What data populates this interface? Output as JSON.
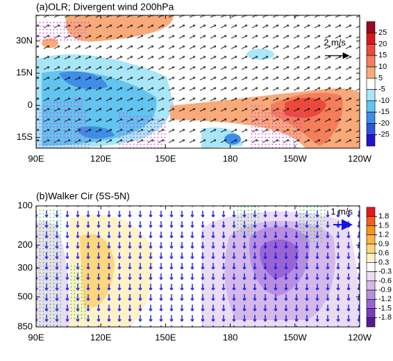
{
  "chart_data": [
    {
      "type": "contour",
      "title": "(a)OLR; Divergent wind 200hPa",
      "xlim": [
        90,
        240
      ],
      "xticks": [
        {
          "value": 90,
          "label": "90E"
        },
        {
          "value": 120,
          "label": "120E"
        },
        {
          "value": 150,
          "label": "150E"
        },
        180,
        {
          "value": 210,
          "label": "150W"
        },
        {
          "value": 240,
          "label": "120W"
        }
      ],
      "ylim": [
        -20,
        42
      ],
      "yticks": [
        {
          "value": -15,
          "label": "15S"
        },
        0,
        {
          "value": 15,
          "label": "15N"
        },
        {
          "value": 30,
          "label": "30N"
        }
      ],
      "levels": [
        25,
        20,
        15,
        10,
        5,
        -5,
        -10,
        -15,
        -20,
        -25
      ],
      "colors": [
        "#9b0a1e",
        "#d7191c",
        "#ea4a3c",
        "#f47e5a",
        "#f9aa7a",
        "#ffffff",
        "#a8e6f8",
        "#62c4ef",
        "#3f8de6",
        "#2f55d8",
        "#2612d2"
      ],
      "reference_vector": "2 m/s"
    },
    {
      "type": "contour",
      "title": "(b)Walker Cir (5S-5N)",
      "xlim": [
        90,
        240
      ],
      "xticks": [
        {
          "value": 90,
          "label": "90E"
        },
        {
          "value": 120,
          "label": "120E"
        },
        {
          "value": 150,
          "label": "150E"
        },
        180,
        {
          "value": 210,
          "label": "150W"
        },
        {
          "value": 240,
          "label": "120W"
        }
      ],
      "ylim": [
        850,
        100
      ],
      "ylog": true,
      "yticks": [
        100,
        200,
        300,
        500,
        850
      ],
      "levels": [
        1.8,
        1.5,
        1.2,
        0.9,
        0.6,
        0.3,
        -0.3,
        -0.6,
        -0.9,
        -1.2,
        -1.5,
        -1.8
      ],
      "colors": [
        "#e31a1c",
        "#f2601f",
        "#f7931e",
        "#fbb443",
        "#fdd77c",
        "#fff2c6",
        "#ffffff",
        "#eadcf2",
        "#d4b8ea",
        "#b78ee0",
        "#9864d4",
        "#7b3cc2",
        "#5a1896"
      ],
      "reference_vector": "1 m/s"
    }
  ]
}
